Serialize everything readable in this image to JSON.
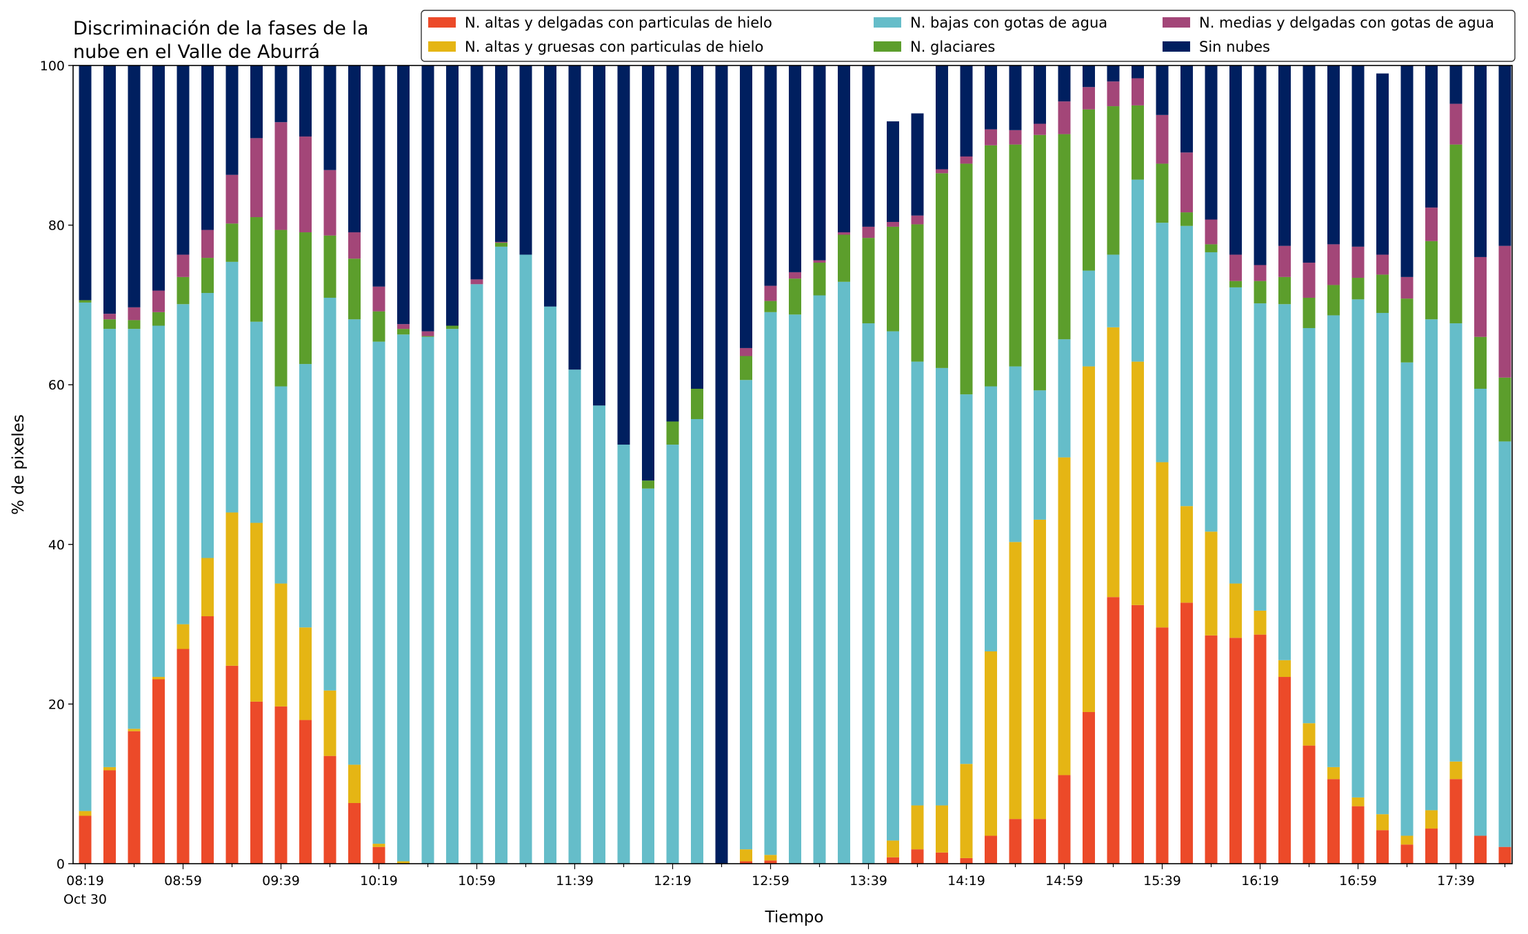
{
  "chart_data": {
    "type": "bar",
    "stacked": true,
    "title_lines": [
      "Discriminación de la fases de la",
      "nube en el Valle de Aburrá"
    ],
    "xlabel": "Tiempo",
    "ylabel": "% de pixeles",
    "ylim": [
      0,
      100
    ],
    "yticks": [
      "0",
      "20",
      "40",
      "60",
      "80",
      "100"
    ],
    "xtick_labels": [
      "08:19",
      "08:59",
      "09:39",
      "10:19",
      "10:59",
      "11:39",
      "12:19",
      "12:59",
      "13:39",
      "14:19",
      "14:59",
      "15:39",
      "16:19",
      "16:59",
      "17:39"
    ],
    "xtick_sublabel": "Oct 30",
    "grid": false,
    "legend_position": "top-right",
    "series": [
      {
        "name": "N. altas y delgadas con particulas de hielo",
        "color": "#ec4a29",
        "values": [
          6,
          11.7,
          16.6,
          23.1,
          26.9,
          31,
          24.8,
          20.3,
          19.7,
          18,
          13.5,
          7.6,
          2.1,
          0,
          0,
          0,
          0,
          0,
          0,
          0,
          0,
          0,
          0,
          0,
          0,
          0,
          0,
          0.3,
          0.4,
          0,
          0,
          0,
          0,
          0.8,
          1.8,
          1.4,
          0.7,
          3.5,
          5.6,
          5.6,
          11.1,
          19,
          33.4,
          32.4,
          29.6,
          32.7,
          28.6,
          28.3,
          28.7,
          23.4,
          14.8,
          10.6,
          7.2,
          4.2,
          2.4,
          4.4,
          10.6,
          3.5,
          2.1
        ]
      },
      {
        "name": "N. altas y gruesas con particulas de hielo",
        "color": "#e5b514",
        "values": [
          0.6,
          0.4,
          0.3,
          0.3,
          3.1,
          7.3,
          19.2,
          22.4,
          15.4,
          11.6,
          8.2,
          4.8,
          0.4,
          0.3,
          0,
          0,
          0,
          0,
          0,
          0,
          0,
          0,
          0,
          0,
          0,
          0,
          0,
          1.5,
          0.7,
          0,
          0,
          0,
          0,
          2.1,
          5.5,
          5.9,
          11.8,
          23.1,
          34.7,
          37.5,
          39.8,
          43.3,
          33.8,
          30.5,
          20.7,
          12.1,
          13,
          6.8,
          3,
          2.1,
          2.8,
          1.5,
          1.1,
          2,
          1.1,
          2.3,
          2.2,
          0,
          0
        ]
      },
      {
        "name": "N. bajas con gotas de agua",
        "color": "#65bdc9",
        "values": [
          63.7,
          54.9,
          50.1,
          44,
          40.1,
          33.2,
          31.4,
          25.2,
          24.7,
          33,
          49.2,
          55.8,
          62.9,
          66,
          66,
          67,
          72.6,
          77.3,
          76.3,
          69.8,
          61.9,
          57.4,
          52.5,
          47,
          52.5,
          55.7,
          0,
          58.8,
          68,
          68.8,
          71.2,
          72.9,
          67.7,
          63.8,
          55.6,
          54.8,
          46.3,
          33.2,
          22,
          16.2,
          14.8,
          12,
          9.1,
          22.8,
          30,
          35.1,
          35,
          37.1,
          38.5,
          44.6,
          49.5,
          56.6,
          62.4,
          62.8,
          59.3,
          61.5,
          54.9,
          56,
          50.8
        ]
      },
      {
        "name": "N. glaciares",
        "color": "#5c9e2c",
        "values": [
          0.3,
          1.2,
          1.1,
          1.7,
          3.4,
          4.4,
          4.8,
          13.1,
          19.6,
          16.5,
          7.8,
          7.6,
          3.8,
          0.7,
          0.1,
          0.4,
          0,
          0.5,
          0,
          0,
          0,
          0,
          0,
          1,
          2.9,
          3.8,
          0,
          3,
          1.4,
          4.5,
          4.1,
          5.9,
          10.7,
          13.1,
          17.2,
          24.4,
          28.9,
          30.2,
          27.8,
          32,
          25.7,
          20.2,
          18.6,
          9.3,
          7.4,
          1.7,
          1,
          0.8,
          2.8,
          3.4,
          3.8,
          3.8,
          2.7,
          4.8,
          8,
          9.8,
          22.4,
          6.5,
          8
        ]
      },
      {
        "name": "N. medias y delgadas con gotas de agua",
        "color": "#a34678",
        "values": [
          0,
          0.7,
          1.6,
          2.7,
          2.8,
          3.5,
          6.1,
          9.9,
          13.5,
          12,
          8.2,
          3.3,
          3.1,
          0.6,
          0.6,
          0,
          0.6,
          0.1,
          0,
          0,
          0,
          0,
          0,
          0,
          0,
          0,
          0,
          1,
          1.9,
          0.8,
          0.3,
          0.3,
          1.4,
          0.6,
          1.1,
          0.5,
          0.9,
          2,
          1.8,
          1.4,
          4.1,
          2.8,
          3.1,
          3.4,
          6.1,
          7.5,
          3.1,
          3.3,
          2,
          3.9,
          4.4,
          5.1,
          3.9,
          2.5,
          2.7,
          4.2,
          5.1,
          10,
          16.5
        ]
      },
      {
        "name": "Sin nubes",
        "color": "#001f5f",
        "values": [
          29.4,
          31.1,
          30.3,
          28.2,
          23.7,
          20.6,
          13.7,
          9.1,
          7.1,
          8.9,
          13.1,
          20.9,
          27.7,
          32.4,
          33.3,
          32.6,
          26.8,
          22.1,
          23.7,
          30.2,
          38.1,
          42.6,
          47.5,
          52,
          44.6,
          40.5,
          100,
          35.4,
          27.6,
          25.9,
          24.4,
          20.9,
          20.2,
          12.6,
          12.8,
          13,
          11.4,
          8,
          8.1,
          7.3,
          4.5,
          2.7,
          2,
          1.6,
          6.2,
          10.9,
          19.3,
          23.7,
          25,
          22.6,
          24.7,
          22.4,
          22.7,
          22.7,
          26.5,
          17.8,
          4.8,
          24,
          22.6
        ]
      }
    ]
  }
}
